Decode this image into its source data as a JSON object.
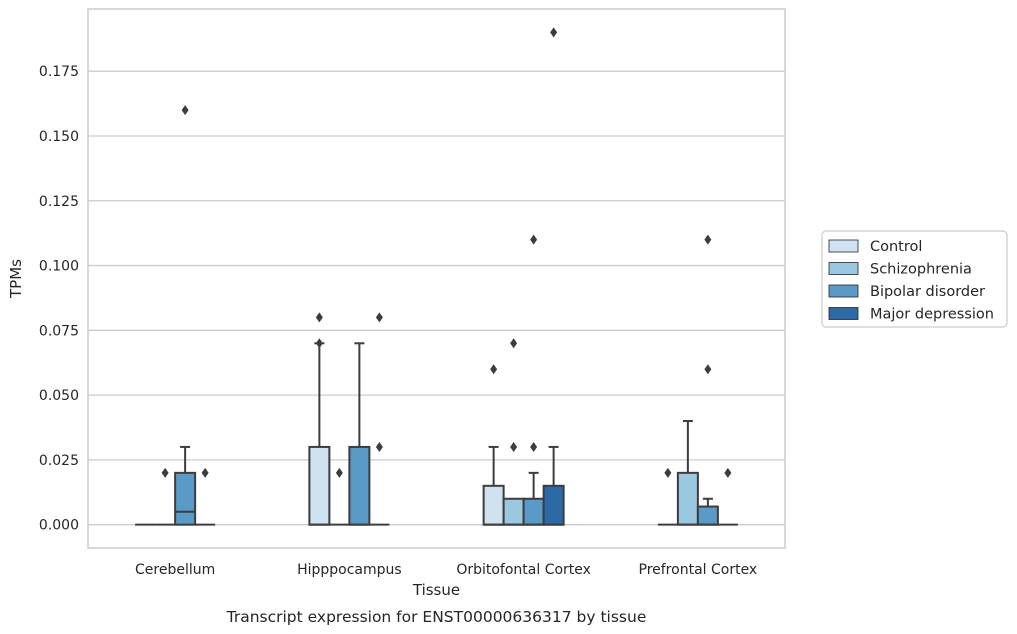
{
  "chart_data": {
    "type": "boxplot",
    "caption": "Transcript expression for ENST00000636317 by tissue",
    "xlabel": "Tissue",
    "ylabel": "TPMs",
    "ylim": [
      -0.009,
      0.199
    ],
    "yticks": [
      "0.000",
      "0.025",
      "0.050",
      "0.075",
      "0.100",
      "0.125",
      "0.150",
      "0.175"
    ],
    "grid": "horizontal",
    "legend_position": "right",
    "categories": [
      "Cerebellum",
      "Hipppocampus",
      "Orbitofontal Cortex",
      "Prefrontal Cortex"
    ],
    "series": [
      {
        "name": "Control",
        "color": "#d0e1f2",
        "boxes": [
          {
            "category": "Cerebellum",
            "q1": 0,
            "median": 0,
            "q3": 0,
            "whisker_low": 0,
            "whisker_high": 0,
            "outliers": []
          },
          {
            "category": "Hipppocampus",
            "q1": 0,
            "median": 0,
            "q3": 0.03,
            "whisker_low": 0,
            "whisker_high": 0.07,
            "outliers": [
              0.08,
              0.07
            ]
          },
          {
            "category": "Orbitofontal Cortex",
            "q1": 0,
            "median": 0,
            "q3": 0.015,
            "whisker_low": 0,
            "whisker_high": 0.03,
            "outliers": [
              0.06
            ]
          },
          {
            "category": "Prefrontal Cortex",
            "q1": 0,
            "median": 0,
            "q3": 0,
            "whisker_low": 0,
            "whisker_high": 0,
            "outliers": [
              0.02
            ]
          }
        ]
      },
      {
        "name": "Schizophrenia",
        "color": "#9ac8e0",
        "boxes": [
          {
            "category": "Cerebellum",
            "q1": 0,
            "median": 0,
            "q3": 0,
            "whisker_low": 0,
            "whisker_high": 0,
            "outliers": [
              0.02
            ]
          },
          {
            "category": "Hipppocampus",
            "q1": 0,
            "median": 0,
            "q3": 0,
            "whisker_low": 0,
            "whisker_high": 0,
            "outliers": [
              0.02
            ]
          },
          {
            "category": "Orbitofontal Cortex",
            "q1": 0,
            "median": 0,
            "q3": 0.01,
            "whisker_low": 0,
            "whisker_high": 0.01,
            "outliers": [
              0.07,
              0.03
            ]
          },
          {
            "category": "Prefrontal Cortex",
            "q1": 0,
            "median": 0,
            "q3": 0.02,
            "whisker_low": 0,
            "whisker_high": 0.04,
            "outliers": []
          }
        ]
      },
      {
        "name": "Bipolar disorder",
        "color": "#5a9ac7",
        "boxes": [
          {
            "category": "Cerebellum",
            "q1": 0,
            "median": 0.005,
            "q3": 0.02,
            "whisker_low": 0,
            "whisker_high": 0.03,
            "outliers": [
              0.16
            ]
          },
          {
            "category": "Hipppocampus",
            "q1": 0,
            "median": 0,
            "q3": 0.03,
            "whisker_low": 0,
            "whisker_high": 0.07,
            "outliers": []
          },
          {
            "category": "Orbitofontal Cortex",
            "q1": 0,
            "median": 0,
            "q3": 0.01,
            "whisker_low": 0,
            "whisker_high": 0.02,
            "outliers": [
              0.11,
              0.03
            ]
          },
          {
            "category": "Prefrontal Cortex",
            "q1": 0,
            "median": 0,
            "q3": 0.007,
            "whisker_low": 0,
            "whisker_high": 0.01,
            "outliers": [
              0.11,
              0.06
            ]
          }
        ]
      },
      {
        "name": "Major depression",
        "color": "#2b6aa7",
        "boxes": [
          {
            "category": "Cerebellum",
            "q1": 0,
            "median": 0,
            "q3": 0,
            "whisker_low": 0,
            "whisker_high": 0,
            "outliers": [
              0.02
            ]
          },
          {
            "category": "Hipppocampus",
            "q1": 0,
            "median": 0,
            "q3": 0,
            "whisker_low": 0,
            "whisker_high": 0,
            "outliers": [
              0.08,
              0.03
            ]
          },
          {
            "category": "Orbitofontal Cortex",
            "q1": 0,
            "median": 0,
            "q3": 0.015,
            "whisker_low": 0,
            "whisker_high": 0.03,
            "outliers": [
              0.19
            ]
          },
          {
            "category": "Prefrontal Cortex",
            "q1": 0,
            "median": 0,
            "q3": 0,
            "whisker_low": 0,
            "whisker_high": 0,
            "outliers": [
              0.02
            ]
          }
        ]
      }
    ],
    "colors": {
      "grid": "#cccccc",
      "frame": "#cccccc",
      "line": "#3d3d3d",
      "outlier": "#3d3d3d"
    }
  }
}
